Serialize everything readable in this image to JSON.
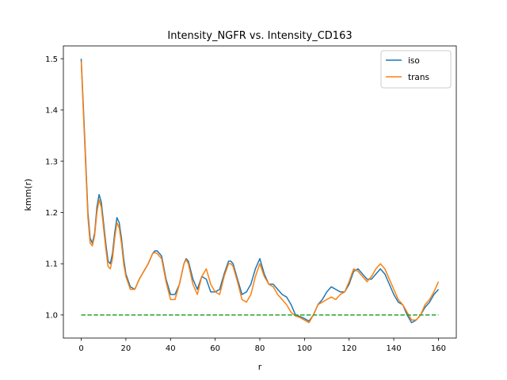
{
  "chart_data": {
    "type": "line",
    "title": "Intensity_NGFR vs. Intensity_CD163",
    "xlabel": "r",
    "ylabel": "kmm(r)",
    "xlim": [
      -8,
      168
    ],
    "ylim": [
      0.955,
      1.525
    ],
    "xticks": [
      0,
      20,
      40,
      60,
      80,
      100,
      120,
      140,
      160
    ],
    "yticks": [
      1.0,
      1.1,
      1.2,
      1.3,
      1.4,
      1.5
    ],
    "ytick_labels": [
      "1.0",
      "1.1",
      "1.2",
      "1.3",
      "1.4",
      "1.5"
    ],
    "grid": false,
    "legend_position": "top-right",
    "series": [
      {
        "name": "iso",
        "color": "#1f77b4",
        "style": "solid",
        "x": [
          0,
          1,
          2,
          3,
          4,
          5,
          6,
          7,
          8,
          9,
          10,
          11,
          12,
          13,
          14,
          15,
          16,
          17,
          18,
          19,
          20,
          22,
          24,
          26,
          28,
          30,
          32,
          33,
          34,
          36,
          38,
          40,
          42,
          44,
          46,
          47,
          48,
          50,
          52,
          54,
          56,
          58,
          60,
          62,
          64,
          66,
          67,
          68,
          70,
          72,
          74,
          76,
          78,
          80,
          82,
          84,
          86,
          88,
          90,
          92,
          94,
          96,
          98,
          100,
          102,
          104,
          106,
          108,
          110,
          112,
          114,
          116,
          118,
          120,
          122,
          124,
          126,
          128,
          130,
          132,
          134,
          136,
          138,
          140,
          142,
          144,
          146,
          148,
          150,
          152,
          154,
          156,
          158,
          160
        ],
        "y": [
          1.5,
          1.4,
          1.3,
          1.2,
          1.15,
          1.14,
          1.16,
          1.21,
          1.235,
          1.22,
          1.18,
          1.14,
          1.105,
          1.1,
          1.12,
          1.16,
          1.19,
          1.18,
          1.15,
          1.11,
          1.08,
          1.055,
          1.05,
          1.07,
          1.085,
          1.1,
          1.12,
          1.125,
          1.125,
          1.115,
          1.07,
          1.04,
          1.04,
          1.06,
          1.1,
          1.11,
          1.105,
          1.07,
          1.05,
          1.075,
          1.07,
          1.045,
          1.045,
          1.05,
          1.08,
          1.105,
          1.105,
          1.1,
          1.07,
          1.04,
          1.045,
          1.06,
          1.09,
          1.11,
          1.08,
          1.06,
          1.06,
          1.05,
          1.04,
          1.035,
          1.02,
          1.0,
          0.997,
          0.993,
          0.988,
          1.0,
          1.02,
          1.03,
          1.045,
          1.055,
          1.05,
          1.045,
          1.045,
          1.06,
          1.085,
          1.09,
          1.08,
          1.07,
          1.07,
          1.08,
          1.09,
          1.08,
          1.06,
          1.04,
          1.025,
          1.02,
          1.0,
          0.985,
          0.99,
          1.0,
          1.015,
          1.025,
          1.04,
          1.05
        ]
      },
      {
        "name": "trans",
        "color": "#ff7f0e",
        "style": "solid",
        "x": [
          0,
          1,
          2,
          3,
          4,
          5,
          6,
          7,
          8,
          9,
          10,
          11,
          12,
          13,
          14,
          15,
          16,
          17,
          18,
          19,
          20,
          22,
          24,
          26,
          28,
          30,
          32,
          33,
          34,
          36,
          38,
          40,
          42,
          44,
          46,
          47,
          48,
          50,
          52,
          54,
          56,
          58,
          60,
          62,
          64,
          66,
          67,
          68,
          70,
          72,
          74,
          76,
          78,
          80,
          82,
          84,
          86,
          88,
          90,
          92,
          94,
          96,
          98,
          100,
          102,
          104,
          106,
          108,
          110,
          112,
          114,
          116,
          118,
          120,
          122,
          124,
          126,
          128,
          130,
          132,
          134,
          136,
          138,
          140,
          142,
          144,
          146,
          148,
          150,
          152,
          154,
          156,
          158,
          160
        ],
        "y": [
          1.495,
          1.39,
          1.29,
          1.19,
          1.14,
          1.135,
          1.155,
          1.2,
          1.225,
          1.21,
          1.17,
          1.13,
          1.095,
          1.09,
          1.11,
          1.15,
          1.18,
          1.17,
          1.14,
          1.1,
          1.075,
          1.05,
          1.05,
          1.07,
          1.085,
          1.1,
          1.12,
          1.122,
          1.12,
          1.11,
          1.065,
          1.03,
          1.03,
          1.06,
          1.1,
          1.108,
          1.1,
          1.06,
          1.04,
          1.075,
          1.09,
          1.06,
          1.045,
          1.04,
          1.075,
          1.1,
          1.1,
          1.095,
          1.065,
          1.03,
          1.025,
          1.04,
          1.075,
          1.1,
          1.075,
          1.06,
          1.055,
          1.04,
          1.03,
          1.02,
          1.005,
          0.998,
          0.995,
          0.99,
          0.985,
          1.0,
          1.02,
          1.025,
          1.03,
          1.035,
          1.03,
          1.04,
          1.045,
          1.065,
          1.09,
          1.085,
          1.075,
          1.065,
          1.075,
          1.09,
          1.1,
          1.09,
          1.07,
          1.05,
          1.03,
          1.02,
          1.005,
          0.99,
          0.99,
          1.0,
          1.02,
          1.03,
          1.045,
          1.065
        ]
      },
      {
        "name": "",
        "color": "#2ca02c",
        "style": "dashed",
        "x": [
          0,
          160
        ],
        "y": [
          1.0,
          1.0
        ]
      }
    ],
    "legend": [
      {
        "label": "iso",
        "color": "#1f77b4"
      },
      {
        "label": "trans",
        "color": "#ff7f0e"
      }
    ]
  }
}
